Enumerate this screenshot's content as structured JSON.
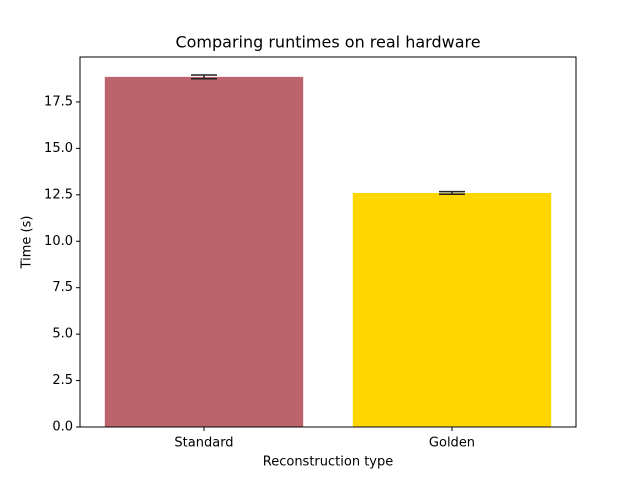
{
  "chart_data": {
    "type": "bar",
    "title": "Comparing runtimes on real hardware",
    "xlabel": "Reconstruction type",
    "ylabel": "Time (s)",
    "categories": [
      "Standard",
      "Golden"
    ],
    "values": [
      18.85,
      12.6
    ],
    "errors": [
      0.1,
      0.07
    ],
    "colors": [
      "#bc636b",
      "#ffd700"
    ],
    "error_color": "#222222",
    "ylim": [
      0,
      19.92
    ],
    "yticks": [
      {
        "value": 0,
        "label": "0.0"
      },
      2.5,
      {
        "value": 5,
        "label": "5.0"
      },
      7.5,
      {
        "value": 10,
        "label": "10.0"
      },
      12.5,
      {
        "value": 15,
        "label": "15.0"
      },
      17.5
    ],
    "grid": false
  }
}
